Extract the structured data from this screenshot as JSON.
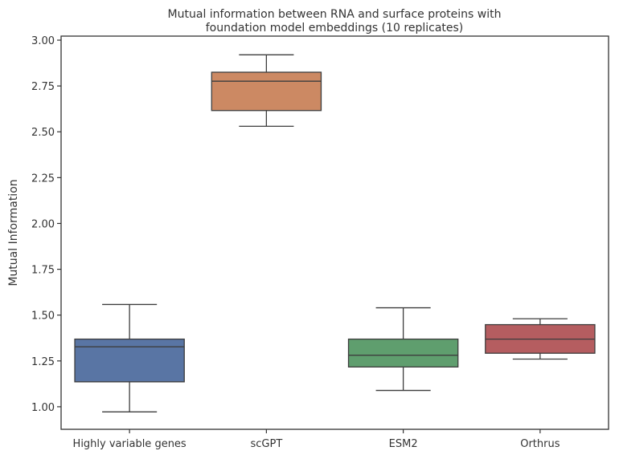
{
  "chart_data": {
    "type": "box",
    "title": "Mutual information between RNA and surface proteins with foundation model embeddings (10 replicates)",
    "title_lines": [
      "Mutual information between RNA and surface proteins with",
      "foundation model embeddings (10 replicates)"
    ],
    "xlabel": "",
    "ylabel": "Mutual Information",
    "ylim": [
      0.877,
      3.022
    ],
    "yticks": [
      1.0,
      1.25,
      1.5,
      1.75,
      2.0,
      2.25,
      2.5,
      2.75,
      3.0
    ],
    "ytick_labels": [
      "1.00",
      "1.25",
      "1.50",
      "1.75",
      "2.00",
      "2.25",
      "2.50",
      "2.75",
      "3.00"
    ],
    "grid": false,
    "categories": [
      "Highly variable genes",
      "scGPT",
      "ESM2",
      "Orthrus"
    ],
    "boxes": [
      {
        "category": "Highly variable genes",
        "whisker_low": 0.972,
        "q1": 1.136,
        "median": 1.327,
        "q3": 1.369,
        "whisker_high": 1.558,
        "color": "#5975a4"
      },
      {
        "category": "scGPT",
        "whisker_low": 2.53,
        "q1": 2.616,
        "median": 2.776,
        "q3": 2.825,
        "whisker_high": 2.92,
        "color": "#cc8963"
      },
      {
        "category": "ESM2",
        "whisker_low": 1.089,
        "q1": 1.217,
        "median": 1.281,
        "q3": 1.369,
        "whisker_high": 1.54,
        "color": "#5f9e6e"
      },
      {
        "category": "Orthrus",
        "whisker_low": 1.26,
        "q1": 1.292,
        "median": 1.369,
        "q3": 1.448,
        "whisker_high": 1.48,
        "color": "#b55d60"
      }
    ],
    "line_color": "#3d3d3d"
  }
}
